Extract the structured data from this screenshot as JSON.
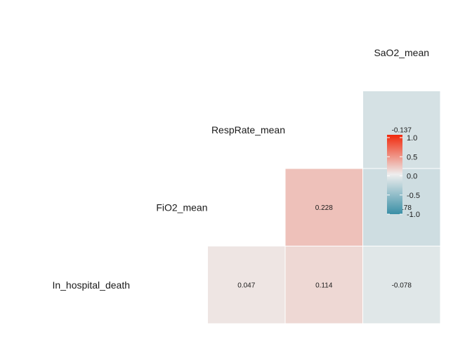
{
  "chart_data": {
    "type": "heatmap",
    "variables": [
      "In_hospital_death",
      "FiO2_mean",
      "RespRate_mean",
      "SaO2_mean"
    ],
    "cells": [
      {
        "row": "RespRate_mean",
        "col": "SaO2_mean",
        "value": -0.137,
        "label": "-0.137"
      },
      {
        "row": "FiO2_mean",
        "col": "RespRate_mean",
        "value": 0.228,
        "label": "0.228"
      },
      {
        "row": "FiO2_mean",
        "col": "SaO2_mean",
        "value": -0.178,
        "label": "-0.178"
      },
      {
        "row": "In_hospital_death",
        "col": "FiO2_mean",
        "value": 0.047,
        "label": "0.047"
      },
      {
        "row": "In_hospital_death",
        "col": "RespRate_mean",
        "value": 0.114,
        "label": "0.114"
      },
      {
        "row": "In_hospital_death",
        "col": "SaO2_mean",
        "value": -0.078,
        "label": "-0.078"
      }
    ],
    "legend": {
      "ticks": [
        "1.0",
        "0.5",
        "0.0",
        "-0.5",
        "-1.0"
      ],
      "tick_values": [
        1.0,
        0.5,
        0.0,
        -0.5,
        -1.0
      ],
      "range": [
        -1,
        1
      ],
      "colors": {
        "low": "#3a8fa6",
        "mid": "#eeeeee",
        "high": "#f0290c"
      },
      "placement": "right"
    },
    "grid": false
  }
}
